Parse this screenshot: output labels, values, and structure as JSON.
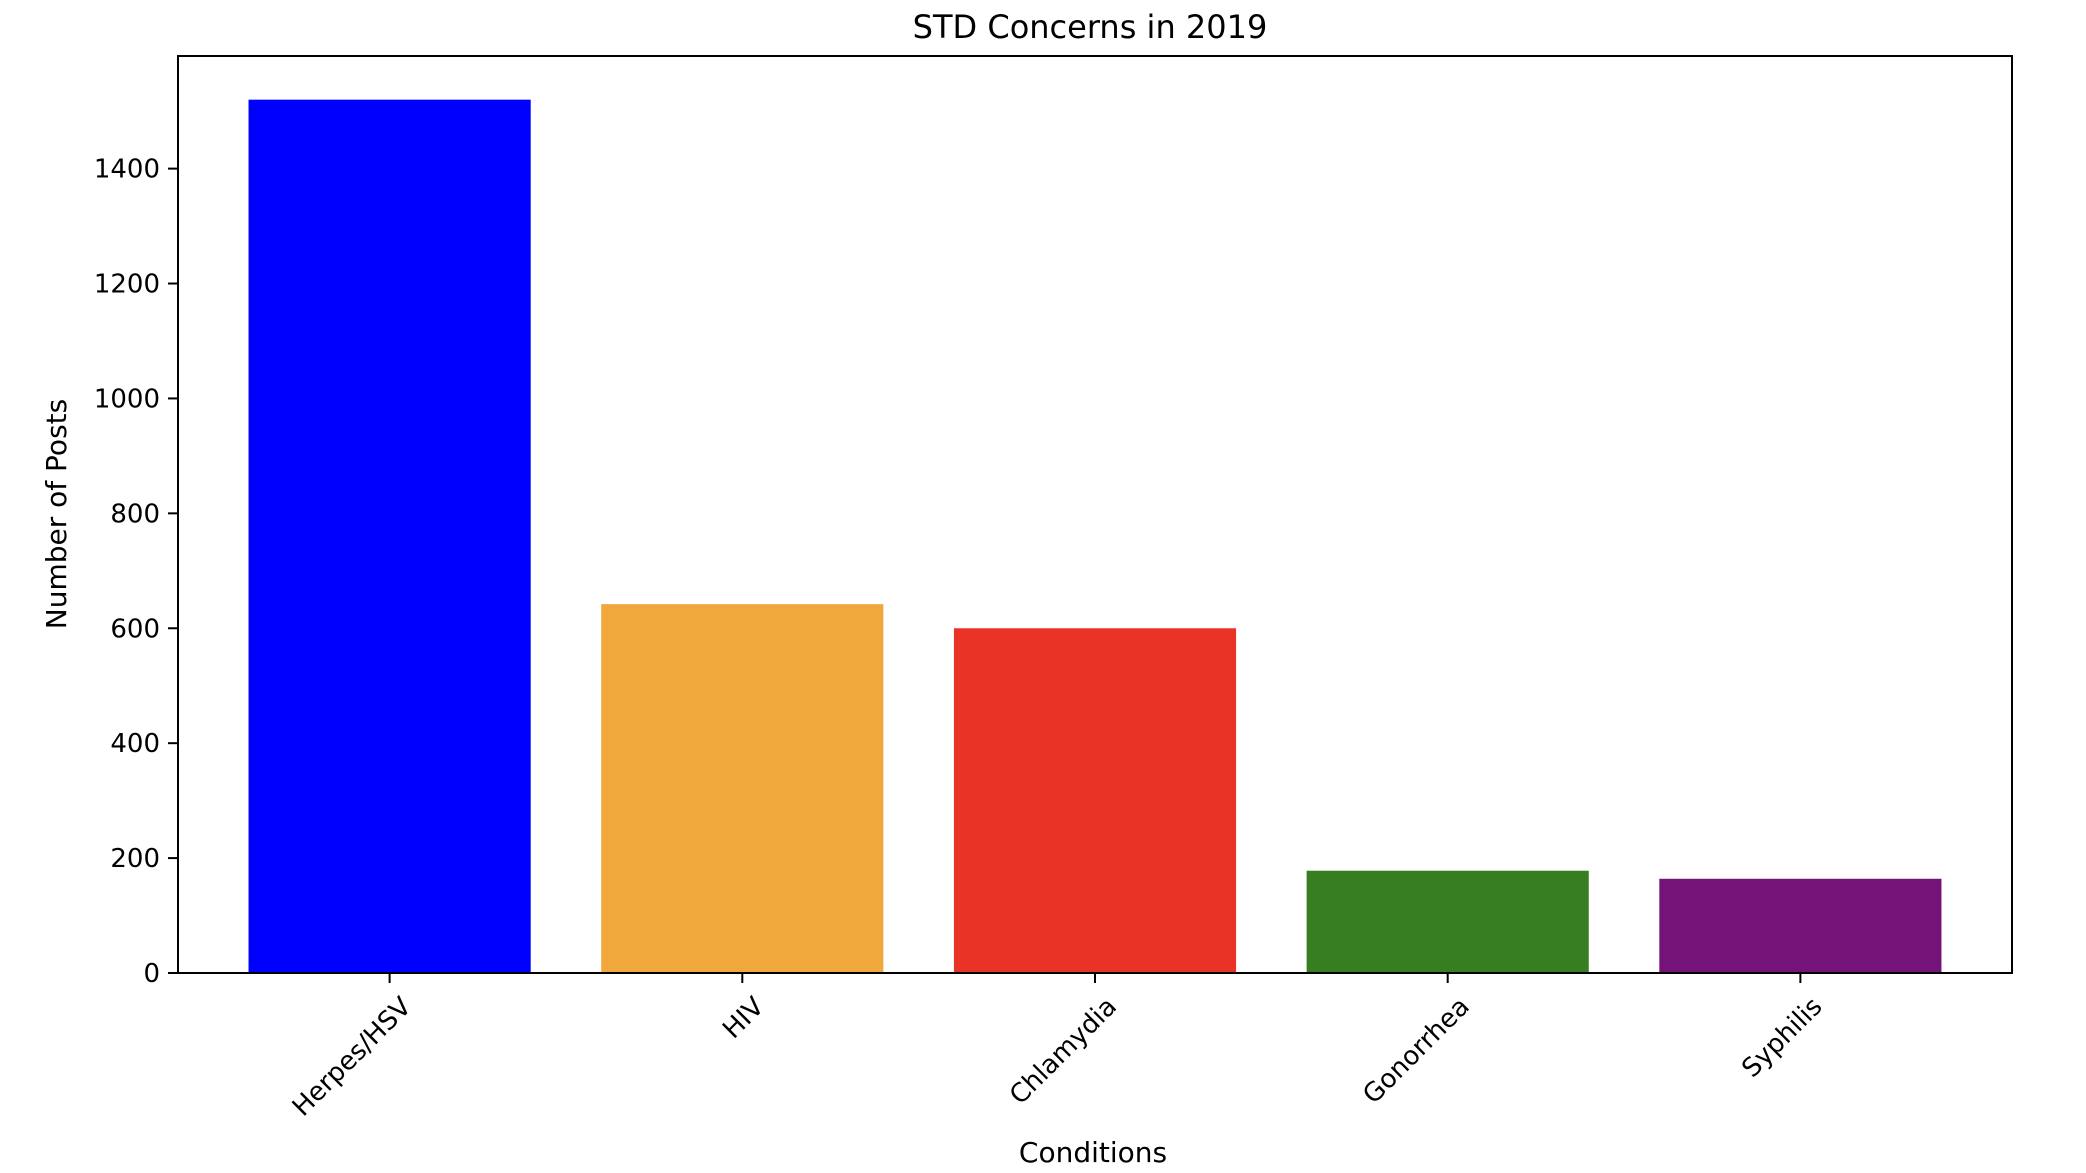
{
  "chart_data": {
    "type": "bar",
    "title": "STD Concerns in 2019",
    "xlabel": "Conditions",
    "ylabel": "Number of Posts",
    "categories": [
      "Herpes/HSV",
      "HIV",
      "Chlamydia",
      "Gonorrhea",
      "Syphilis"
    ],
    "values": [
      1520,
      642,
      600,
      178,
      164
    ],
    "colors": [
      "#0000ff",
      "#f0a83c",
      "#e83326",
      "#377e22",
      "#741478"
    ],
    "ylim": [
      0,
      1596
    ],
    "yticks": [
      0,
      200,
      400,
      600,
      800,
      1000,
      1200,
      1400
    ],
    "grid": false,
    "legend": "none"
  }
}
